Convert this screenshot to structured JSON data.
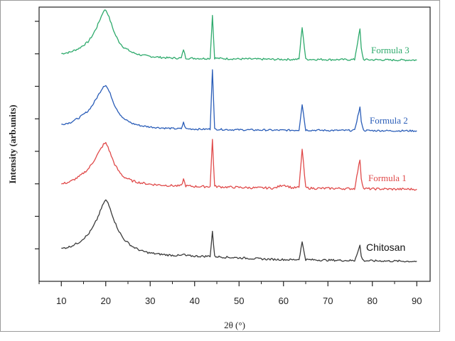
{
  "chart_data": {
    "type": "line",
    "xlabel": "2θ (°)",
    "ylabel": "Intensity (arb.units)",
    "xlim": [
      5,
      93
    ],
    "x_ticks": [
      10,
      20,
      30,
      40,
      50,
      60,
      70,
      80,
      90
    ],
    "y_ticks": 8,
    "y_ticks_show_labels": false,
    "grid": false,
    "series_styles": {
      "Formula 3": {
        "color": "#2eaa6c"
      },
      "Formula 2": {
        "color": "#2a5db8"
      },
      "Formula 1": {
        "color": "#e04a4a"
      },
      "Chitosan": {
        "color": "#3a3a3a"
      }
    },
    "series": [
      {
        "name": "Formula 3",
        "x": [
          10,
          12,
          14,
          16,
          17,
          18,
          19,
          19.5,
          20,
          20.5,
          21,
          22,
          23,
          24,
          26,
          28,
          30,
          32,
          34,
          36,
          37,
          37.5,
          38,
          39,
          40,
          42,
          43.5,
          44,
          44.5,
          46,
          48,
          50,
          52,
          54,
          56,
          58,
          60,
          62,
          63.5,
          64.2,
          65,
          66,
          68,
          70,
          72,
          74,
          76,
          77.2,
          77.5,
          78,
          80,
          82,
          84,
          86,
          88,
          90
        ],
        "y": [
          3.5,
          4.2,
          6,
          9,
          12,
          16,
          21,
          23.5,
          24,
          22,
          19,
          13,
          9,
          6.5,
          4,
          2.8,
          2.2,
          1.8,
          1.5,
          1.4,
          1.4,
          5.5,
          1.4,
          1.3,
          1.3,
          1.2,
          1.3,
          21.5,
          1.4,
          1.2,
          1.1,
          1,
          1,
          0.9,
          0.9,
          0.8,
          0.8,
          0.8,
          0.9,
          16,
          0.9,
          0.8,
          0.8,
          0.7,
          0.7,
          0.7,
          0.7,
          15,
          6,
          0.7,
          0.6,
          0.6,
          0.5,
          0.5,
          0.5,
          0.5
        ]
      },
      {
        "name": "Formula 2",
        "x": [
          10,
          12,
          14,
          16,
          17,
          18,
          19,
          19.5,
          20,
          20.5,
          21,
          22,
          23,
          24,
          26,
          28,
          30,
          32,
          34,
          36,
          37,
          37.5,
          38,
          39,
          40,
          42,
          43.5,
          44,
          44.5,
          46,
          48,
          50,
          52,
          54,
          56,
          58,
          60,
          62,
          63.5,
          64.2,
          65,
          66,
          68,
          70,
          72,
          74,
          76,
          77.2,
          77.5,
          78,
          80,
          82,
          84,
          86,
          88,
          90
        ],
        "y": [
          4,
          5,
          7.5,
          11,
          14,
          18,
          22,
          24,
          24.5,
          22.5,
          20,
          14,
          10,
          7,
          4.5,
          3.3,
          2.7,
          2.3,
          2,
          1.8,
          1.8,
          5,
          1.8,
          1.7,
          1.6,
          1.5,
          1.6,
          33,
          1.6,
          1.4,
          1.3,
          1.2,
          1.2,
          1.1,
          1.1,
          1,
          1,
          1,
          1.1,
          14.5,
          1.1,
          1,
          1,
          0.9,
          0.9,
          0.9,
          0.9,
          13,
          6,
          0.9,
          0.8,
          0.8,
          0.7,
          0.7,
          0.7,
          0.7
        ]
      },
      {
        "name": "Formula 1",
        "x": [
          10,
          12,
          14,
          16,
          17,
          18,
          19,
          19.5,
          20,
          20.5,
          21,
          22,
          23,
          24,
          26,
          28,
          30,
          32,
          34,
          36,
          37,
          37.5,
          38,
          39,
          40,
          42,
          43.5,
          44,
          44.5,
          46,
          48,
          50,
          52,
          54,
          56,
          58,
          60,
          62,
          63.5,
          64.2,
          65,
          66,
          68,
          70,
          72,
          74,
          76,
          77.2,
          77.5,
          78,
          80,
          82,
          84,
          86,
          88,
          90
        ],
        "y": [
          2.5,
          3.5,
          5.5,
          8.5,
          11,
          14,
          17,
          18.5,
          19,
          17.5,
          15,
          10.5,
          7.5,
          5.5,
          3.8,
          3,
          2.5,
          2.2,
          2,
          1.8,
          1.8,
          4.5,
          1.8,
          1.7,
          1.6,
          1.5,
          1.6,
          20.5,
          1.6,
          1.4,
          1.3,
          1.2,
          1.1,
          1,
          1,
          0.9,
          2.3,
          1,
          1.2,
          16.5,
          1.1,
          0.9,
          0.8,
          0.8,
          0.8,
          0.7,
          0.7,
          12.5,
          5,
          0.7,
          0.6,
          0.6,
          0.5,
          0.5,
          0.5,
          0.5
        ]
      },
      {
        "name": "Chitosan",
        "x": [
          10,
          12,
          14,
          16,
          17,
          18,
          19,
          19.5,
          20,
          20.5,
          21,
          22,
          23,
          24,
          26,
          28,
          30,
          32,
          34,
          36,
          37,
          37.5,
          38,
          39,
          40,
          42,
          43.5,
          44,
          44.5,
          46,
          48,
          50,
          52,
          54,
          56,
          58,
          60,
          62,
          63.5,
          64.2,
          65,
          66,
          68,
          70,
          72,
          74,
          76,
          77.2,
          77.5,
          78,
          80,
          82,
          84,
          86,
          88,
          90
        ],
        "y": [
          7.5,
          8.5,
          10.5,
          14,
          17,
          21,
          26,
          28.5,
          30,
          28.5,
          26,
          20,
          15.5,
          12,
          8.5,
          6.5,
          5.5,
          5,
          4.6,
          4.4,
          4.3,
          5,
          4.3,
          4.2,
          4.1,
          4,
          4.1,
          15.5,
          4,
          3.7,
          3.5,
          3.3,
          3.1,
          2.9,
          2.7,
          2.6,
          2.5,
          2.4,
          2.6,
          10.5,
          2.5,
          2.4,
          2.3,
          2.2,
          2.2,
          2.1,
          2,
          9,
          4,
          2,
          1.9,
          1.9,
          1.8,
          1.8,
          1.7,
          1.7
        ]
      }
    ]
  }
}
